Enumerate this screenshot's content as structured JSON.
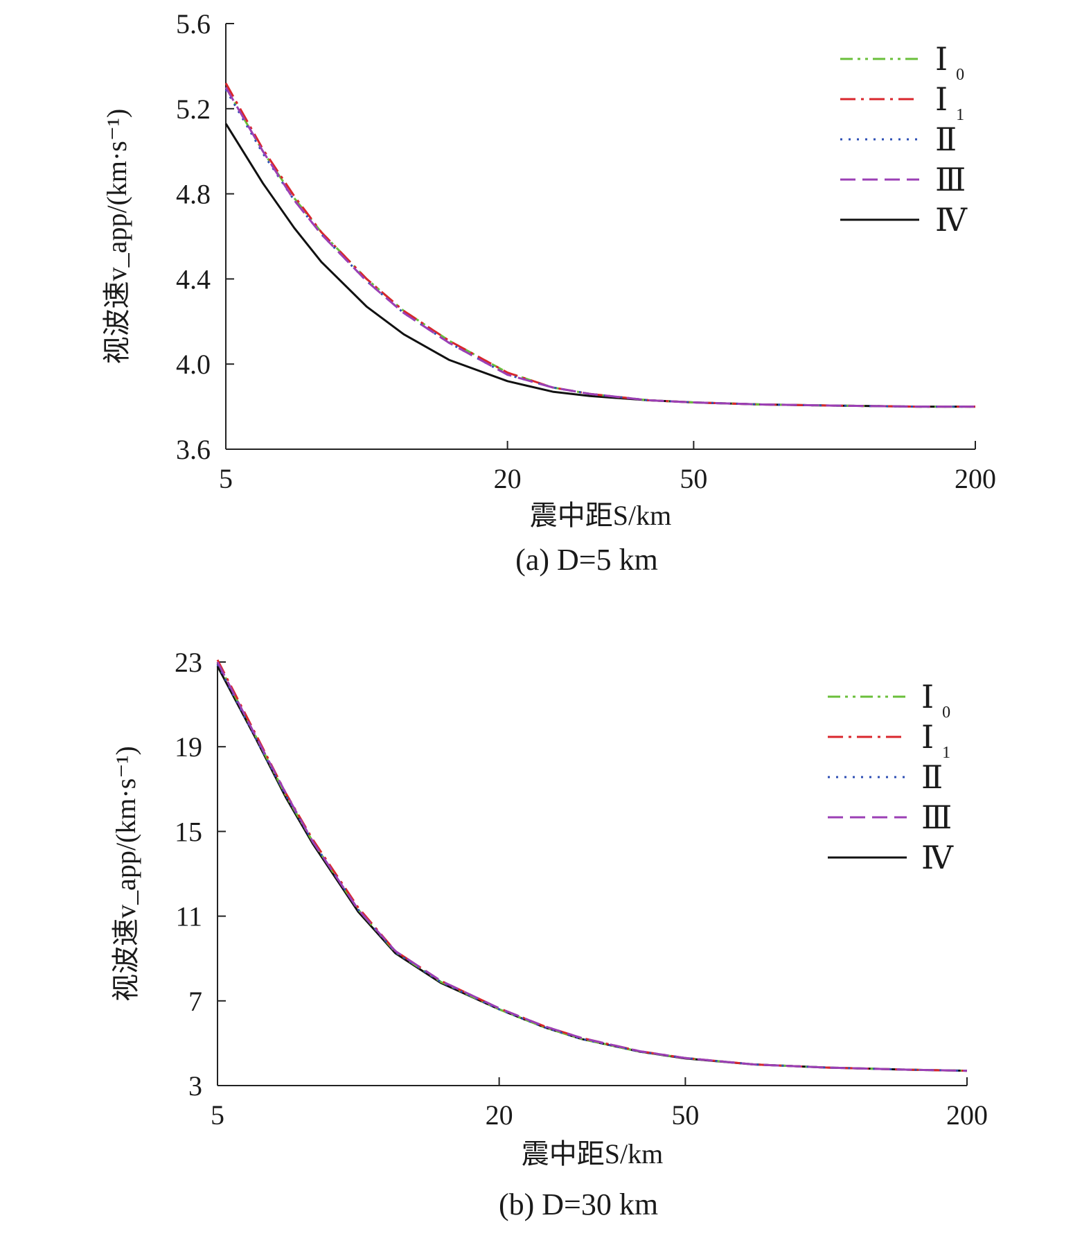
{
  "chart_data": [
    {
      "type": "line",
      "panel": "a",
      "caption": "(a) D=5 km",
      "xlabel": "震中距S/km",
      "ylabel": "视波速v_app/(km·s⁻¹)",
      "x_scale": "log",
      "xlim": [
        5,
        200
      ],
      "ylim": [
        3.6,
        5.6
      ],
      "x_ticks": [
        5,
        20,
        50,
        200
      ],
      "x_tick_labels": [
        "5",
        "20",
        "50",
        "200"
      ],
      "y_ticks": [
        3.6,
        4.0,
        4.4,
        4.8,
        5.2,
        5.6
      ],
      "y_tick_labels": [
        "3.6",
        "4.0",
        "4.4",
        "4.8",
        "5.2",
        "5.6"
      ],
      "grid": false,
      "legend_position": "top-right",
      "series": [
        {
          "name": "Ⅰ0",
          "color": "#6abf3a",
          "dash": "dash-dot-dot",
          "x": [
            5,
            6,
            7,
            8,
            10,
            12,
            15,
            20,
            25,
            30,
            40,
            50,
            70,
            100,
            150,
            200
          ],
          "y": [
            5.3,
            5.0,
            4.78,
            4.62,
            4.4,
            4.25,
            4.11,
            3.96,
            3.89,
            3.86,
            3.83,
            3.82,
            3.81,
            3.805,
            3.8,
            3.8
          ]
        },
        {
          "name": "Ⅰ1",
          "color": "#d9262c",
          "dash": "dash-dot",
          "x": [
            5,
            6,
            7,
            8,
            10,
            12,
            15,
            20,
            25,
            30,
            40,
            50,
            70,
            100,
            150,
            200
          ],
          "y": [
            5.32,
            5.01,
            4.79,
            4.62,
            4.4,
            4.25,
            4.11,
            3.96,
            3.89,
            3.86,
            3.83,
            3.82,
            3.81,
            3.805,
            3.8,
            3.8
          ]
        },
        {
          "name": "Ⅱ",
          "color": "#2e4fb4",
          "dash": "dotted",
          "x": [
            5,
            6,
            7,
            8,
            10,
            12,
            15,
            20,
            25,
            30,
            40,
            50,
            70,
            100,
            150,
            200
          ],
          "y": [
            5.29,
            4.99,
            4.77,
            4.61,
            4.39,
            4.24,
            4.1,
            3.95,
            3.89,
            3.86,
            3.83,
            3.82,
            3.81,
            3.805,
            3.8,
            3.8
          ]
        },
        {
          "name": "Ⅲ",
          "color": "#9b3fb5",
          "dash": "dashed",
          "x": [
            5,
            6,
            7,
            8,
            10,
            12,
            15,
            20,
            25,
            30,
            40,
            50,
            70,
            100,
            150,
            200
          ],
          "y": [
            5.3,
            5.0,
            4.77,
            4.61,
            4.39,
            4.24,
            4.1,
            3.95,
            3.89,
            3.86,
            3.83,
            3.82,
            3.81,
            3.805,
            3.8,
            3.8
          ]
        },
        {
          "name": "Ⅳ",
          "color": "#111111",
          "dash": "solid",
          "x": [
            5,
            6,
            7,
            8,
            10,
            12,
            15,
            20,
            25,
            30,
            40,
            50,
            70,
            100,
            150,
            200
          ],
          "y": [
            5.13,
            4.85,
            4.64,
            4.48,
            4.27,
            4.14,
            4.02,
            3.92,
            3.87,
            3.85,
            3.83,
            3.82,
            3.81,
            3.805,
            3.8,
            3.8
          ]
        }
      ]
    },
    {
      "type": "line",
      "panel": "b",
      "caption": "(b) D=30 km",
      "xlabel": "震中距S/km",
      "ylabel": "视波速v_app/(km·s⁻¹)",
      "x_scale": "log",
      "xlim": [
        5,
        200
      ],
      "ylim": [
        3,
        23
      ],
      "x_ticks": [
        5,
        20,
        50,
        200
      ],
      "x_tick_labels": [
        "5",
        "20",
        "50",
        "200"
      ],
      "y_ticks": [
        3,
        7,
        11,
        15,
        19,
        23
      ],
      "y_tick_labels": [
        "3",
        "7",
        "11",
        "15",
        "19",
        "23"
      ],
      "grid": false,
      "legend_position": "top-right",
      "series": [
        {
          "name": "Ⅰ0",
          "color": "#6abf3a",
          "dash": "dash-dot-dot",
          "x": [
            5,
            6,
            7,
            8,
            10,
            12,
            15,
            20,
            25,
            30,
            40,
            50,
            70,
            100,
            150,
            200
          ],
          "y": [
            23.0,
            19.6,
            16.7,
            14.5,
            11.3,
            9.3,
            7.9,
            6.6,
            5.75,
            5.2,
            4.6,
            4.3,
            4.0,
            3.85,
            3.75,
            3.7
          ]
        },
        {
          "name": "Ⅰ1",
          "color": "#d9262c",
          "dash": "dash-dot",
          "x": [
            5,
            6,
            7,
            8,
            10,
            12,
            15,
            20,
            25,
            30,
            40,
            50,
            70,
            100,
            150,
            200
          ],
          "y": [
            23.1,
            19.7,
            16.8,
            14.6,
            11.4,
            9.35,
            7.95,
            6.65,
            5.8,
            5.25,
            4.62,
            4.3,
            4.0,
            3.85,
            3.75,
            3.7
          ]
        },
        {
          "name": "Ⅱ",
          "color": "#2e4fb4",
          "dash": "dotted",
          "x": [
            5,
            6,
            7,
            8,
            10,
            12,
            15,
            20,
            25,
            30,
            40,
            50,
            70,
            100,
            150,
            200
          ],
          "y": [
            22.9,
            19.5,
            16.7,
            14.5,
            11.3,
            9.3,
            7.9,
            6.6,
            5.75,
            5.2,
            4.6,
            4.3,
            4.0,
            3.85,
            3.75,
            3.7
          ]
        },
        {
          "name": "Ⅲ",
          "color": "#9b3fb5",
          "dash": "dashed",
          "x": [
            5,
            6,
            7,
            8,
            10,
            12,
            15,
            20,
            25,
            30,
            40,
            50,
            70,
            100,
            150,
            200
          ],
          "y": [
            23.0,
            19.6,
            16.8,
            14.5,
            11.3,
            9.35,
            7.95,
            6.65,
            5.8,
            5.25,
            4.62,
            4.3,
            4.0,
            3.85,
            3.75,
            3.7
          ]
        },
        {
          "name": "Ⅳ",
          "color": "#111111",
          "dash": "solid",
          "x": [
            5,
            6,
            7,
            8,
            10,
            12,
            15,
            20,
            25,
            30,
            40,
            50,
            70,
            100,
            150,
            200
          ],
          "y": [
            22.8,
            19.5,
            16.6,
            14.4,
            11.2,
            9.25,
            7.85,
            6.6,
            5.75,
            5.2,
            4.6,
            4.28,
            4.0,
            3.85,
            3.75,
            3.7
          ]
        }
      ]
    }
  ]
}
